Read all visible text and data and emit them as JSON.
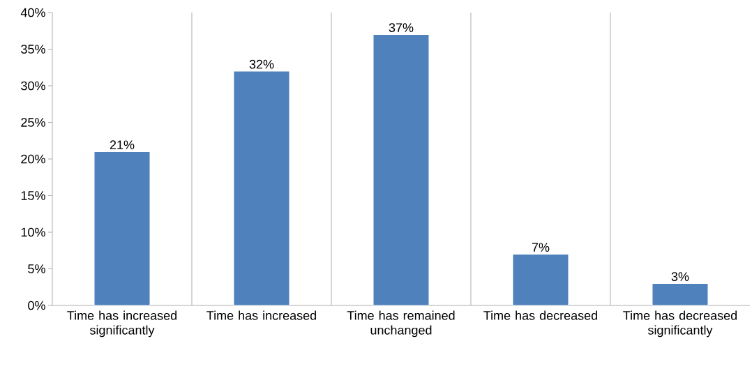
{
  "chart_data": {
    "type": "bar",
    "categories": [
      "Time has increased significantly",
      "Time has increased",
      "Time has remained unchanged",
      "Time has decreased",
      "Time has decreased significantly"
    ],
    "values": [
      21,
      32,
      37,
      7,
      3
    ],
    "value_labels": [
      "21%",
      "32%",
      "37%",
      "7%",
      "3%"
    ],
    "color": "#4f81bd",
    "ylim": [
      0,
      40
    ],
    "yticks": [
      {
        "value": 0,
        "label": "0%"
      },
      {
        "value": 5,
        "label": "5%"
      },
      {
        "value": 10,
        "label": "10%"
      },
      {
        "value": 15,
        "label": "15%"
      },
      {
        "value": 20,
        "label": "20%"
      },
      {
        "value": 25,
        "label": "25%"
      },
      {
        "value": 30,
        "label": "30%"
      },
      {
        "value": 35,
        "label": "35%"
      },
      {
        "value": 40,
        "label": "40%"
      }
    ],
    "grid": "x"
  }
}
